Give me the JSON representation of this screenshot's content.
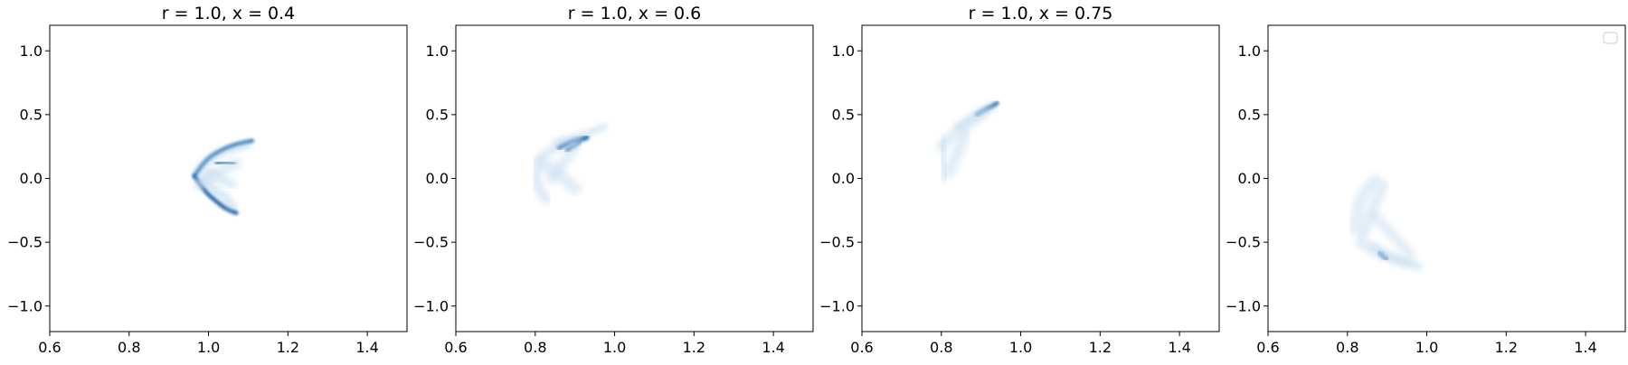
{
  "chart_data": [
    {
      "type": "heatmap",
      "title": "r = 1.0, x = 0.4",
      "xlim": [
        0.6,
        1.5
      ],
      "ylim": [
        -1.2,
        1.2
      ],
      "xticks": [
        "0.6",
        "0.8",
        "1.0",
        "1.2",
        "1.4"
      ],
      "yticks": [
        "1.0",
        "0.5",
        "0.0",
        "−0.5",
        "−1.0"
      ],
      "grid": false,
      "colormap": "Blues",
      "bright_color": "#08519c",
      "curves": [
        {
          "intensity": 0.85,
          "width": 4,
          "x": [
            0.965,
            0.99,
            1.03,
            1.07,
            1.11
          ],
          "y": [
            0.02,
            0.14,
            0.22,
            0.27,
            0.295
          ]
        },
        {
          "intensity": 0.9,
          "width": 4.5,
          "x": [
            0.965,
            0.99,
            1.02,
            1.045,
            1.07
          ],
          "y": [
            0.02,
            -0.1,
            -0.18,
            -0.24,
            -0.27
          ]
        },
        {
          "intensity": 0.8,
          "width": 4,
          "x": [
            1.02,
            1.04,
            1.065
          ],
          "y": [
            0.12,
            0.13,
            0.115
          ]
        },
        {
          "intensity": 0.25,
          "width": 8,
          "x": [
            0.97,
            1.0,
            1.03,
            1.065,
            1.1
          ],
          "y": [
            0.05,
            0.15,
            0.2,
            0.24,
            0.27
          ]
        },
        {
          "intensity": 0.2,
          "width": 10,
          "x": [
            0.985,
            1.01,
            1.04,
            1.06
          ],
          "y": [
            0.0,
            -0.08,
            -0.15,
            -0.22
          ]
        },
        {
          "intensity": 0.15,
          "width": 10,
          "x": [
            1.0,
            1.03,
            1.06
          ],
          "y": [
            0.05,
            0.0,
            -0.05
          ]
        },
        {
          "intensity": 0.12,
          "width": 12,
          "x": [
            0.975,
            1.01,
            1.04,
            1.07
          ],
          "y": [
            -0.05,
            0.03,
            0.08,
            0.12
          ]
        }
      ]
    },
    {
      "type": "heatmap",
      "title": "r = 1.0, x = 0.6",
      "xlim": [
        0.6,
        1.5
      ],
      "ylim": [
        -1.2,
        1.2
      ],
      "xticks": [
        "0.6",
        "0.8",
        "1.0",
        "1.2",
        "1.4"
      ],
      "yticks": [
        "1.0",
        "0.5",
        "0.0",
        "−0.5",
        "−1.0"
      ],
      "grid": false,
      "colormap": "Blues",
      "bright_color": "#08519c",
      "curves": [
        {
          "intensity": 0.25,
          "width": 6,
          "x": [
            0.85,
            0.9,
            0.94,
            0.975
          ],
          "y": [
            0.28,
            0.32,
            0.36,
            0.41
          ]
        },
        {
          "intensity": 0.85,
          "width": 5,
          "x": [
            0.86,
            0.885,
            0.91,
            0.93
          ],
          "y": [
            0.24,
            0.28,
            0.3,
            0.32
          ]
        },
        {
          "intensity": 0.8,
          "width": 4.5,
          "x": [
            0.88,
            0.895,
            0.91
          ],
          "y": [
            0.22,
            0.25,
            0.285
          ]
        },
        {
          "intensity": 0.12,
          "width": 12,
          "x": [
            0.81,
            0.8,
            0.81,
            0.83
          ],
          "y": [
            0.14,
            0.02,
            -0.1,
            -0.16
          ]
        },
        {
          "intensity": 0.1,
          "width": 14,
          "x": [
            0.82,
            0.85,
            0.88,
            0.9
          ],
          "y": [
            0.12,
            0.06,
            -0.02,
            -0.08
          ]
        },
        {
          "intensity": 0.15,
          "width": 10,
          "x": [
            0.82,
            0.85,
            0.88,
            0.91
          ],
          "y": [
            0.18,
            0.24,
            0.28,
            0.3
          ]
        },
        {
          "intensity": 0.1,
          "width": 12,
          "x": [
            0.84,
            0.87,
            0.9
          ],
          "y": [
            0.0,
            0.12,
            0.25
          ]
        }
      ]
    },
    {
      "type": "heatmap",
      "title": "r = 1.0, x = 0.75",
      "xlim": [
        0.6,
        1.5
      ],
      "ylim": [
        -1.2,
        1.2
      ],
      "xticks": [
        "0.6",
        "0.8",
        "1.0",
        "1.2",
        "1.4"
      ],
      "yticks": [
        "1.0",
        "0.5",
        "0.0",
        "−0.5",
        "−1.0"
      ],
      "grid": false,
      "colormap": "Blues",
      "bright_color": "#08519c",
      "curves": [
        {
          "intensity": 0.85,
          "width": 4.5,
          "x": [
            0.89,
            0.91,
            0.93,
            0.94
          ],
          "y": [
            0.5,
            0.54,
            0.57,
            0.59
          ]
        },
        {
          "intensity": 0.2,
          "width": 8,
          "x": [
            0.84,
            0.87,
            0.9,
            0.93
          ],
          "y": [
            0.4,
            0.46,
            0.52,
            0.57
          ]
        },
        {
          "intensity": 0.1,
          "width": 12,
          "x": [
            0.8,
            0.82,
            0.85,
            0.88,
            0.91
          ],
          "y": [
            0.25,
            0.32,
            0.39,
            0.45,
            0.52
          ]
        },
        {
          "intensity": 0.08,
          "width": 14,
          "x": [
            0.805,
            0.8,
            0.81
          ],
          "y": [
            0.28,
            0.12,
            0.02
          ]
        },
        {
          "intensity": 0.08,
          "width": 14,
          "x": [
            0.82,
            0.84,
            0.86
          ],
          "y": [
            0.05,
            0.2,
            0.35
          ]
        }
      ]
    },
    {
      "type": "heatmap",
      "title": "",
      "xlim": [
        0.6,
        1.5
      ],
      "ylim": [
        -1.2,
        1.2
      ],
      "xticks": [
        "0.6",
        "0.8",
        "1.0",
        "1.2",
        "1.4"
      ],
      "yticks": [
        "1.0",
        "0.5",
        "0.0",
        "−0.5",
        "−1.0"
      ],
      "grid": false,
      "colormap": "Blues",
      "bright_color": "#08519c",
      "legend": "top-right",
      "curves": [
        {
          "intensity": 0.85,
          "width": 4.5,
          "x": [
            0.88,
            0.89,
            0.9
          ],
          "y": [
            -0.58,
            -0.61,
            -0.63
          ]
        },
        {
          "intensity": 0.2,
          "width": 8,
          "x": [
            0.86,
            0.9,
            0.94,
            0.98
          ],
          "y": [
            -0.52,
            -0.6,
            -0.65,
            -0.69
          ]
        },
        {
          "intensity": 0.1,
          "width": 12,
          "x": [
            0.84,
            0.85,
            0.87,
            0.89
          ],
          "y": [
            -0.45,
            -0.33,
            -0.2,
            -0.05
          ]
        },
        {
          "intensity": 0.08,
          "width": 14,
          "x": [
            0.82,
            0.825,
            0.84,
            0.87
          ],
          "y": [
            -0.4,
            -0.25,
            -0.12,
            -0.02
          ]
        },
        {
          "intensity": 0.08,
          "width": 12,
          "x": [
            0.87,
            0.9,
            0.93,
            0.96
          ],
          "y": [
            -0.3,
            -0.4,
            -0.5,
            -0.6
          ]
        },
        {
          "intensity": 0.1,
          "width": 10,
          "x": [
            0.83,
            0.86,
            0.9,
            0.95
          ],
          "y": [
            -0.5,
            -0.57,
            -0.62,
            -0.67
          ]
        }
      ]
    }
  ]
}
